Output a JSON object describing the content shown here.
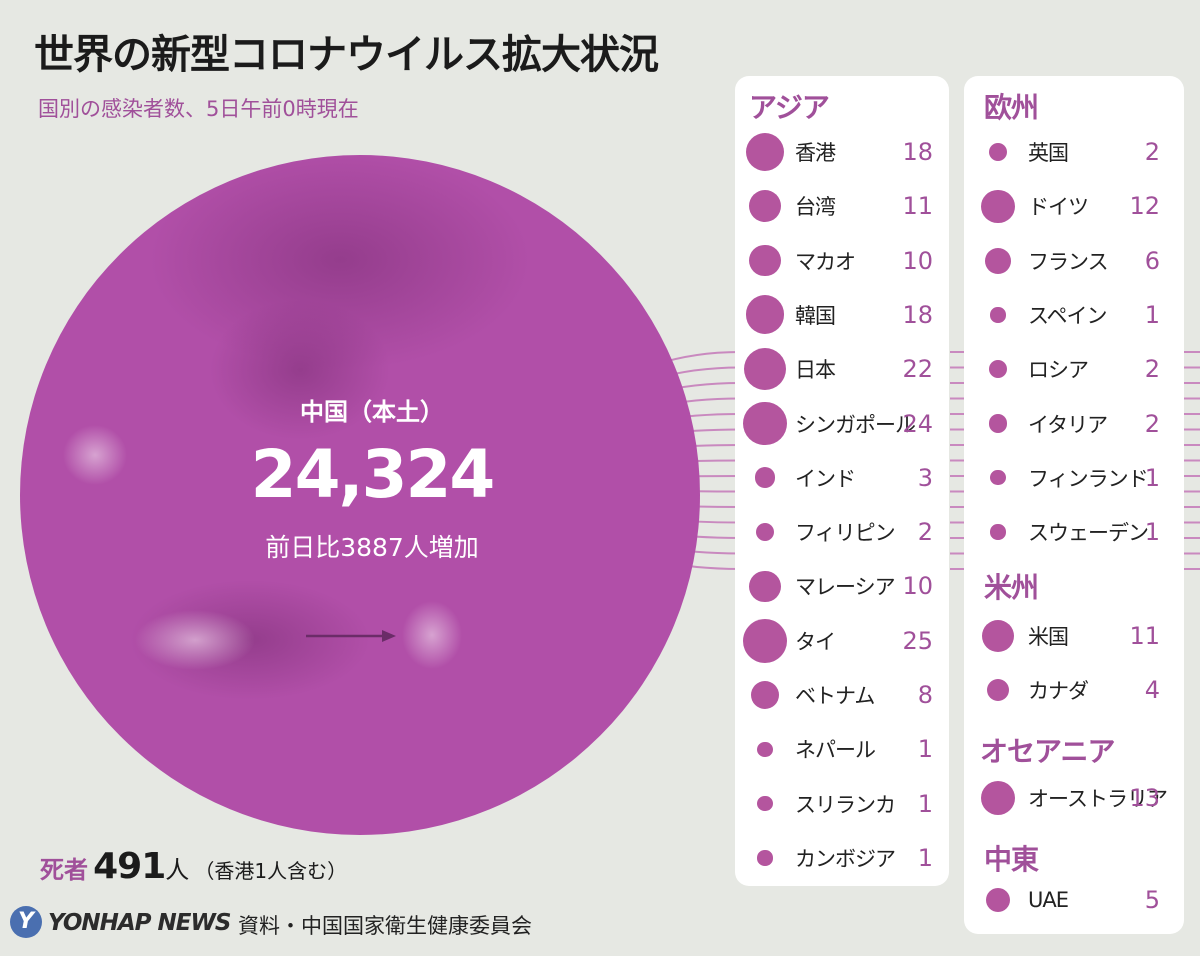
{
  "title": "世界の新型コロナウイルス拡大状況",
  "subtitle": "国別の感染者数、5日午前0時現在",
  "china": {
    "label": "中国（本土）",
    "cases": "24,324",
    "change": "前日比3887人増加"
  },
  "regions": {
    "asia": {
      "name": "アジア",
      "countries": [
        {
          "name": "香港",
          "count": 18
        },
        {
          "name": "台湾",
          "count": 11
        },
        {
          "name": "マカオ",
          "count": 10
        },
        {
          "name": "韓国",
          "count": 18
        },
        {
          "name": "日本",
          "count": 22
        },
        {
          "name": "シンガポール",
          "count": 24
        },
        {
          "name": "インド",
          "count": 3
        },
        {
          "name": "フィリピン",
          "count": 2
        },
        {
          "name": "マレーシア",
          "count": 10
        },
        {
          "name": "タイ",
          "count": 25
        },
        {
          "name": "ベトナム",
          "count": 8
        },
        {
          "name": "ネパール",
          "count": 1
        },
        {
          "name": "スリランカ",
          "count": 1
        },
        {
          "name": "カンボジア",
          "count": 1
        }
      ]
    },
    "europe": {
      "name": "欧州",
      "countries": [
        {
          "name": "英国",
          "count": 2
        },
        {
          "name": "ドイツ",
          "count": 12
        },
        {
          "name": "フランス",
          "count": 6
        },
        {
          "name": "スペイン",
          "count": 1
        },
        {
          "name": "ロシア",
          "count": 2
        },
        {
          "name": "イタリア",
          "count": 2
        },
        {
          "name": "フィンランド",
          "count": 1
        },
        {
          "name": "スウェーデン",
          "count": 1
        }
      ]
    },
    "americas": {
      "name": "米州",
      "countries": [
        {
          "name": "米国",
          "count": 11
        },
        {
          "name": "カナダ",
          "count": 4
        }
      ]
    },
    "oceania": {
      "name": "オセアニア",
      "countries": [
        {
          "name": "オーストラリア",
          "count": 13
        }
      ]
    },
    "middle_east": {
      "name": "中東",
      "countries": [
        {
          "name": "UAE",
          "count": 5
        }
      ]
    }
  },
  "deaths": {
    "label": "死者",
    "number": "491",
    "unit": "人",
    "note": "（香港1人含む）"
  },
  "footer": {
    "logo_mark": "Y",
    "logo_text": "YONHAP NEWS",
    "source": "資料・中国国家衛生健康委員会"
  },
  "colors": {
    "accent": "#a0509a",
    "dot": "#b4559e",
    "circle": "#b14fa8",
    "background": "#e6e8e3"
  }
}
